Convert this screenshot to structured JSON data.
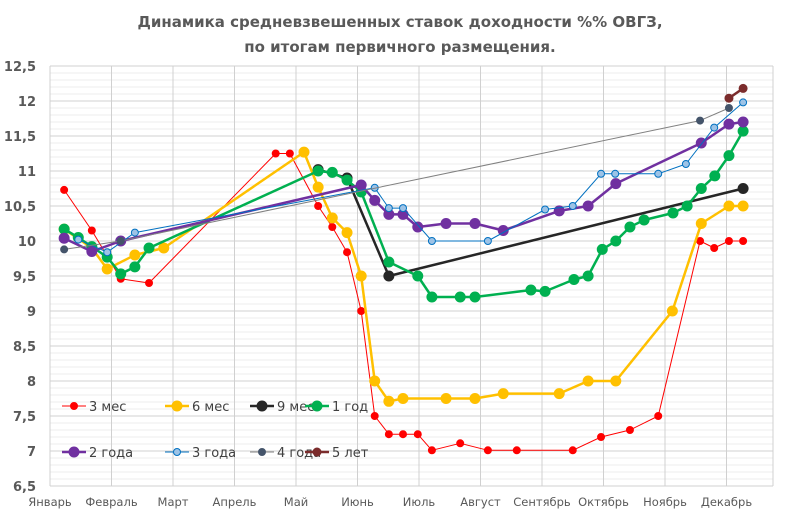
{
  "chart_data": {
    "type": "line",
    "title_lines": [
      "Динамика средневзвешенных ставок доходности %% ОВГЗ,",
      "по итогам первичного размещения."
    ],
    "x_unit": "month index (0 = start of Январь)",
    "x_tick_labels": [
      "Январь",
      "Февраль",
      "Март",
      "Апрель",
      "Май",
      "Июнь",
      "Июль",
      "Август",
      "Сентябрь",
      "Октябрь",
      "Ноябрь",
      "Декабрь"
    ],
    "y_tick_labels": [
      "6,5",
      "7",
      "7,5",
      "8",
      "8,5",
      "9",
      "9,5",
      "10",
      "10,5",
      "11",
      "11,5",
      "12",
      "12,5"
    ],
    "ylim": [
      6.5,
      12.5
    ],
    "xlim": [
      0,
      11.75
    ],
    "grid": true,
    "legend_position": "bottom-left-inside",
    "series": [
      {
        "name": "3 мес",
        "color": "#ff0000",
        "width": 1,
        "r": 3.5,
        "fill": "#ff0000",
        "points": [
          [
            0.23,
            10.73
          ],
          [
            0.68,
            10.15
          ],
          [
            1.15,
            9.46
          ],
          [
            1.61,
            9.4
          ],
          [
            3.67,
            11.25
          ],
          [
            3.9,
            11.25
          ],
          [
            4.36,
            10.5
          ],
          [
            4.59,
            10.2
          ],
          [
            4.83,
            9.84
          ],
          [
            5.06,
            9.0
          ],
          [
            5.28,
            7.5
          ],
          [
            5.51,
            7.24
          ],
          [
            5.74,
            7.24
          ],
          [
            5.98,
            7.24
          ],
          [
            6.21,
            7.01
          ],
          [
            6.67,
            7.11
          ],
          [
            7.12,
            7.01
          ],
          [
            7.59,
            7.01
          ],
          [
            8.5,
            7.01
          ],
          [
            8.96,
            7.2
          ],
          [
            9.43,
            7.3
          ],
          [
            9.89,
            7.5
          ],
          [
            10.57,
            10.0
          ],
          [
            10.8,
            9.9
          ],
          [
            11.04,
            10.0
          ],
          [
            11.27,
            10.0
          ]
        ]
      },
      {
        "name": "6 мес",
        "color": "#ffc000",
        "width": 2.5,
        "r": 5,
        "fill": "#ffc000",
        "points": [
          [
            0.23,
            10.17
          ],
          [
            0.68,
            9.9
          ],
          [
            0.93,
            9.6
          ],
          [
            1.38,
            9.8
          ],
          [
            1.85,
            9.9
          ],
          [
            4.13,
            11.27
          ],
          [
            4.36,
            10.77
          ],
          [
            4.59,
            10.33
          ],
          [
            4.83,
            10.12
          ],
          [
            5.06,
            9.5
          ],
          [
            5.28,
            8.0
          ],
          [
            5.51,
            7.71
          ],
          [
            5.74,
            7.75
          ],
          [
            6.44,
            7.75
          ],
          [
            6.91,
            7.75
          ],
          [
            7.37,
            7.82
          ],
          [
            8.28,
            7.82
          ],
          [
            8.75,
            8.0
          ],
          [
            9.2,
            8.0
          ],
          [
            10.12,
            9.0
          ],
          [
            10.59,
            10.25
          ],
          [
            11.04,
            10.5
          ],
          [
            11.27,
            10.5
          ]
        ]
      },
      {
        "name": "9 мес",
        "color": "#262626",
        "width": 2.5,
        "r": 5,
        "fill": "#262626",
        "points": [
          [
            4.36,
            11.02
          ],
          [
            4.83,
            10.9
          ],
          [
            5.51,
            9.5
          ],
          [
            11.27,
            10.75
          ]
        ]
      },
      {
        "name": "1 год",
        "color": "#00b050",
        "width": 2.5,
        "r": 5,
        "fill": "#00b050",
        "points": [
          [
            0.23,
            10.17
          ],
          [
            0.46,
            10.05
          ],
          [
            0.68,
            9.92
          ],
          [
            0.93,
            9.77
          ],
          [
            1.15,
            9.53
          ],
          [
            1.38,
            9.63
          ],
          [
            1.61,
            9.9
          ],
          [
            4.36,
            11.0
          ],
          [
            4.59,
            10.98
          ],
          [
            4.83,
            10.87
          ],
          [
            5.06,
            10.7
          ],
          [
            5.51,
            9.7
          ],
          [
            5.98,
            9.5
          ],
          [
            6.21,
            9.2
          ],
          [
            6.67,
            9.2
          ],
          [
            6.91,
            9.2
          ],
          [
            7.82,
            9.3
          ],
          [
            8.05,
            9.28
          ],
          [
            8.52,
            9.45
          ],
          [
            8.75,
            9.5
          ],
          [
            8.98,
            9.88
          ],
          [
            9.2,
            10.0
          ],
          [
            9.43,
            10.2
          ],
          [
            9.66,
            10.3
          ],
          [
            10.13,
            10.4
          ],
          [
            10.36,
            10.5
          ],
          [
            10.59,
            10.75
          ],
          [
            10.81,
            10.93
          ],
          [
            11.04,
            11.22
          ],
          [
            11.27,
            11.57
          ]
        ]
      },
      {
        "name": "2 года",
        "color": "#7030a0",
        "width": 2.5,
        "r": 5,
        "fill": "#7030a0",
        "points": [
          [
            0.23,
            10.04
          ],
          [
            0.68,
            9.85
          ],
          [
            1.15,
            10.0
          ],
          [
            5.06,
            10.8
          ],
          [
            5.28,
            10.58
          ],
          [
            5.51,
            10.38
          ],
          [
            5.74,
            10.38
          ],
          [
            5.98,
            10.2
          ],
          [
            6.44,
            10.25
          ],
          [
            6.91,
            10.25
          ],
          [
            7.37,
            10.15
          ],
          [
            8.28,
            10.43
          ],
          [
            8.75,
            10.5
          ],
          [
            9.2,
            10.82
          ],
          [
            10.59,
            11.4
          ],
          [
            11.04,
            11.67
          ],
          [
            11.27,
            11.7
          ]
        ]
      },
      {
        "name": "3 года",
        "color": "#0070c0",
        "width": 1,
        "r": 3.5,
        "fill": "#9dc3e6",
        "points": [
          [
            0.46,
            10.02
          ],
          [
            0.93,
            9.84
          ],
          [
            1.38,
            10.12
          ],
          [
            5.28,
            10.76
          ],
          [
            5.51,
            10.47
          ],
          [
            5.74,
            10.47
          ],
          [
            6.21,
            10.0
          ],
          [
            7.12,
            10.0
          ],
          [
            8.05,
            10.45
          ],
          [
            8.5,
            10.5
          ],
          [
            8.96,
            10.96
          ],
          [
            9.19,
            10.96
          ],
          [
            9.89,
            10.96
          ],
          [
            10.34,
            11.1
          ],
          [
            10.8,
            11.62
          ],
          [
            11.27,
            11.98
          ]
        ]
      },
      {
        "name": "4 года",
        "color": "#808080",
        "width": 1,
        "r": 3.5,
        "fill": "#44546a",
        "points": [
          [
            0.23,
            9.88
          ],
          [
            1.15,
            10.0
          ],
          [
            10.57,
            11.72
          ],
          [
            11.04,
            11.9
          ]
        ]
      },
      {
        "name": "5 лет",
        "color": "#7b2c2c",
        "width": 2.5,
        "r": 4,
        "fill": "#7b2c2c",
        "points": [
          [
            11.04,
            12.04
          ],
          [
            11.27,
            12.18
          ]
        ]
      }
    ]
  }
}
